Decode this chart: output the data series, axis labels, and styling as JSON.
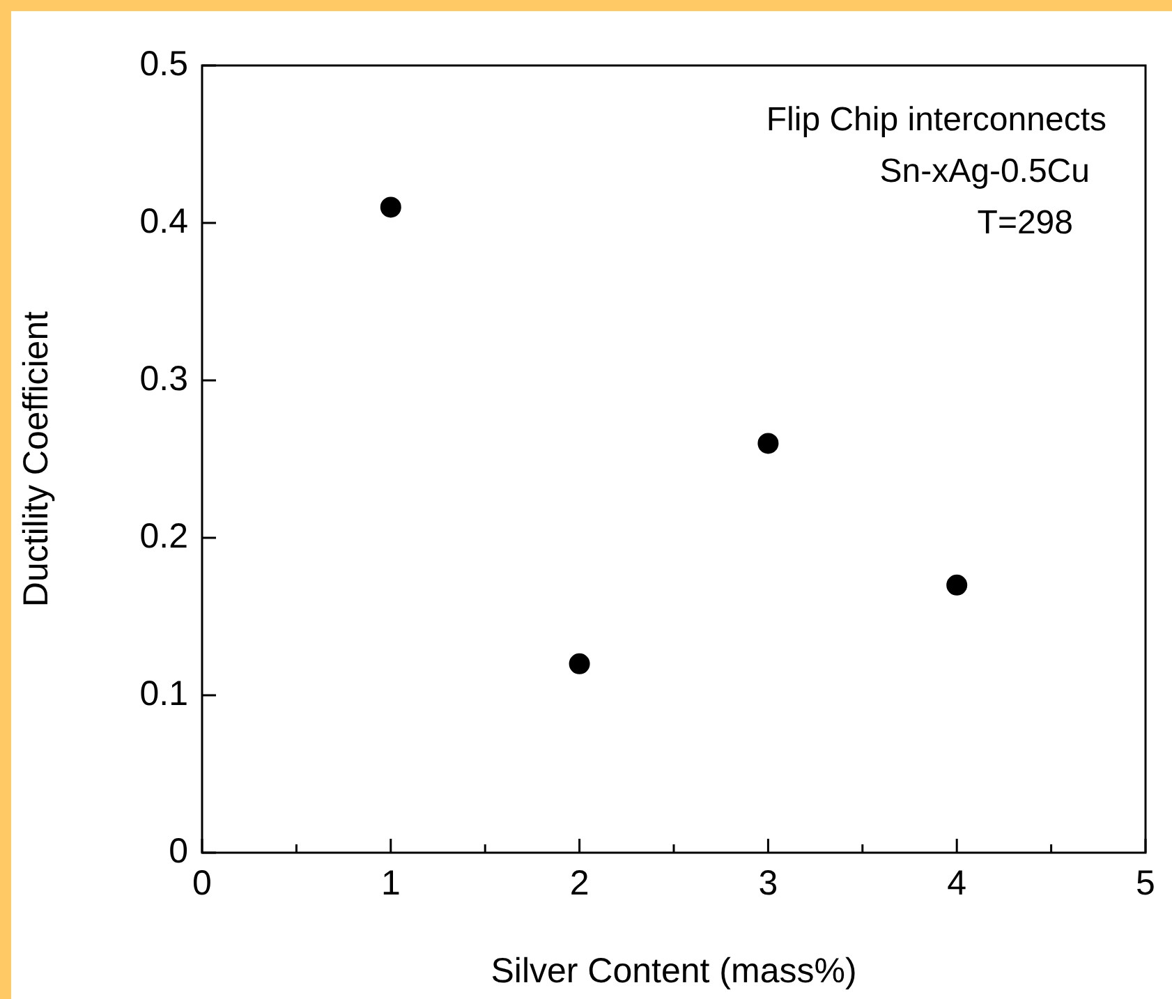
{
  "chart_data": {
    "type": "scatter",
    "xlabel": "Silver Content (mass%)",
    "ylabel": "Ductility Coefficient",
    "x": [
      1,
      2,
      3,
      4
    ],
    "values": [
      0.41,
      0.12,
      0.26,
      0.17
    ],
    "color": "#000000",
    "marker": "circle",
    "grid": false,
    "legend": false,
    "xlim": [
      0,
      5
    ],
    "xticks": [
      0,
      {
        "value": 0.5,
        "label": null
      },
      1,
      {
        "value": 1.5,
        "label": null
      },
      2,
      {
        "value": 2.5,
        "label": null
      },
      3,
      {
        "value": 3.5,
        "label": null
      },
      4,
      {
        "value": 4.5,
        "label": null
      },
      5
    ],
    "ylim": [
      0,
      0.5
    ],
    "yticks": [
      0,
      0.1,
      0.2,
      0.3,
      0.4,
      0.5
    ],
    "annotations": [
      "Flip Chip interconnects",
      "Sn-xAg-0.5Cu",
      "T=298"
    ]
  }
}
